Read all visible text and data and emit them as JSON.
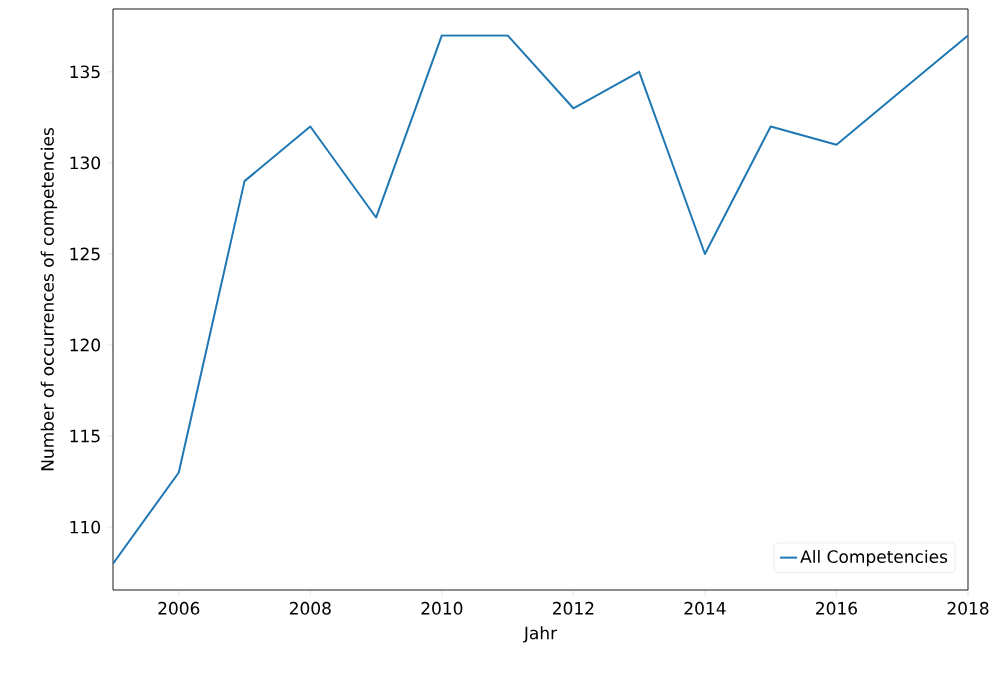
{
  "chart_data": {
    "type": "line",
    "xlabel": "Jahr",
    "ylabel": "Number of occurrences of competencies",
    "x": [
      2005,
      2006,
      2007,
      2008,
      2009,
      2010,
      2011,
      2012,
      2013,
      2014,
      2015,
      2016,
      2017,
      2018
    ],
    "series": [
      {
        "name": "All Competencies",
        "color": "#1f77b4",
        "values": [
          108,
          113,
          129,
          132,
          127,
          137,
          137,
          133,
          135,
          125,
          132,
          131,
          134,
          137
        ]
      }
    ],
    "xlim": [
      2005,
      2018
    ],
    "ylim": [
      106.55,
      138.45
    ],
    "xticks": [
      2006,
      2008,
      2010,
      2012,
      2014,
      2016,
      2018
    ],
    "yticks": [
      110,
      115,
      120,
      125,
      130,
      135
    ],
    "grid": false,
    "legend": "bottom right"
  }
}
